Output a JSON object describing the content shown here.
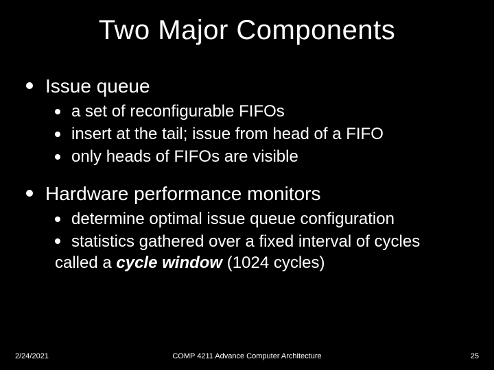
{
  "title": "Two Major Components",
  "sections": [
    {
      "heading": "Issue queue",
      "items": [
        "a set of reconfigurable FIFOs",
        "insert at the tail; issue from head of a FIFO",
        "only heads of FIFOs are visible"
      ]
    },
    {
      "heading": "Hardware performance monitors",
      "items": [
        "determine optimal issue queue configuration",
        "statistics gathered over a fixed interval of cycles called a "
      ],
      "emph": "cycle window",
      "tail": " (1024 cycles)"
    }
  ],
  "footer": {
    "date": "2/24/2021",
    "center": "COMP 4211 Advance Computer Architecture",
    "page": "25"
  },
  "style": {
    "background_color": "#000000",
    "text_color": "#ffffff",
    "title_fontsize": 40,
    "l1_fontsize": 28,
    "l2_fontsize": 24,
    "footer_fontsize": 11,
    "bullet_l1_diameter": 10,
    "bullet_l2_diameter": 8,
    "slide_width": 720,
    "slide_height": 540
  }
}
